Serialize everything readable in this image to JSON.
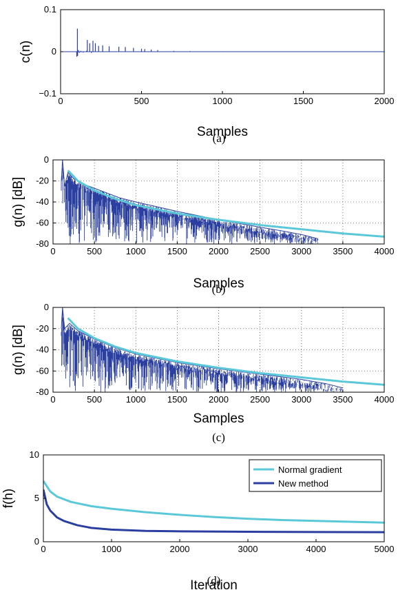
{
  "colors": {
    "light": "#5ac8d8",
    "dark": "#2a3fa0",
    "axis": "#000000",
    "grid": "#555555"
  },
  "chart_data": [
    {
      "id": "a",
      "type": "line",
      "caption": "(a)",
      "xlabel": "Samples",
      "ylabel": "c(n)",
      "xlim": [
        0,
        2000
      ],
      "ylim": [
        -0.1,
        0.1
      ],
      "xticks": [
        0,
        500,
        1000,
        1500,
        2000
      ],
      "ytick_labels": [
        "0.1",
        "0",
        "−0.1"
      ],
      "yticks": [
        0.1,
        0,
        -0.1
      ],
      "grid": false,
      "series": [
        {
          "color": "dark",
          "x": [
            0,
            100,
            100,
            104,
            105,
            110,
            115,
            125,
            140,
            160,
            165,
            170,
            180,
            190,
            200,
            201,
            215,
            220,
            235,
            240,
            260,
            280,
            300,
            330,
            360,
            400,
            450,
            500,
            520,
            560,
            600,
            700,
            800,
            1000,
            1300,
            1600,
            2000
          ],
          "y": [
            0,
            0,
            -0.012,
            0.055,
            -0.01,
            0.004,
            -0.003,
            0.002,
            -0.002,
            0.002,
            0.028,
            0.0,
            0.02,
            -0.003,
            0.026,
            0.0,
            0.02,
            0.0,
            0.014,
            0.0,
            0.015,
            0.0,
            0.013,
            0.0,
            0.012,
            0.011,
            0.009,
            0.007,
            0.006,
            0.005,
            0.004,
            0.002,
            0.0015,
            0.001,
            0.0005,
            0.0003,
            0.0
          ]
        }
      ]
    },
    {
      "id": "b",
      "type": "line",
      "caption": "(b)",
      "xlabel": "Samples",
      "ylabel": "g(n) [dB]",
      "xlim": [
        0,
        4000
      ],
      "ylim": [
        -80,
        0
      ],
      "xticks": [
        0,
        500,
        1000,
        1500,
        2000,
        2500,
        3000,
        3500,
        4000
      ],
      "ytick_labels": [
        "0",
        "-20",
        "-40",
        "-60",
        "-80"
      ],
      "yticks": [
        0,
        -20,
        -40,
        -60,
        -80
      ],
      "grid": true,
      "series": [
        {
          "color": "dark",
          "x": [
            100,
            115,
            140,
            180,
            250,
            400,
            600,
            800,
            1000,
            1500,
            2000,
            2500,
            2800,
            3000,
            3200
          ],
          "upper": [
            -20,
            0,
            -25,
            -12,
            -18,
            -24,
            -30,
            -36,
            -40,
            -49,
            -57,
            -64,
            -68,
            -71,
            -75
          ],
          "lower": [
            -80,
            -40,
            -70,
            -80,
            -80,
            -80,
            -80,
            -80,
            -80,
            -80,
            -80,
            -80,
            -80,
            -80,
            -80
          ]
        },
        {
          "color": "light",
          "x": [
            180,
            300,
            500,
            750,
            1000,
            1500,
            2000,
            2500,
            3000,
            3500,
            4000
          ],
          "y": [
            -10,
            -20,
            -29,
            -37,
            -43,
            -51,
            -57,
            -62,
            -66,
            -70,
            -73
          ]
        }
      ]
    },
    {
      "id": "c",
      "type": "line",
      "caption": "(c)",
      "xlabel": "Samples",
      "ylabel": "g(n) [dB]",
      "xlim": [
        0,
        4000
      ],
      "ylim": [
        -80,
        0
      ],
      "xticks": [
        0,
        500,
        1000,
        1500,
        2000,
        2500,
        3000,
        3500,
        4000
      ],
      "ytick_labels": [
        "0",
        "-20",
        "-40",
        "-60",
        "-80"
      ],
      "yticks": [
        0,
        -20,
        -40,
        -60,
        -80
      ],
      "grid": true,
      "series": [
        {
          "color": "dark",
          "x": [
            100,
            115,
            140,
            200,
            300,
            500,
            750,
            1000,
            1500,
            2000,
            2500,
            3000,
            3300,
            3500
          ],
          "upper": [
            -20,
            0,
            -20,
            -15,
            -22,
            -30,
            -38,
            -44,
            -52,
            -58,
            -63,
            -68,
            -72,
            -76
          ],
          "lower": [
            -80,
            -50,
            -80,
            -80,
            -80,
            -80,
            -80,
            -80,
            -80,
            -80,
            -80,
            -80,
            -80,
            -80
          ]
        },
        {
          "color": "light",
          "x": [
            180,
            300,
            500,
            750,
            1000,
            1500,
            2000,
            2500,
            3000,
            3500,
            4000
          ],
          "y": [
            -10,
            -20,
            -29,
            -37,
            -43,
            -51,
            -57,
            -62,
            -66,
            -70,
            -73
          ]
        }
      ]
    },
    {
      "id": "d",
      "type": "line",
      "caption": "(d)",
      "xlabel": "Iteration",
      "ylabel": "f(h)",
      "xlim": [
        0,
        5000
      ],
      "ylim": [
        0,
        10
      ],
      "xticks": [
        0,
        1000,
        2000,
        3000,
        4000,
        5000
      ],
      "ytick_labels": [
        "10",
        "5",
        "0"
      ],
      "yticks": [
        10,
        5,
        0
      ],
      "grid": false,
      "legend": "top-right",
      "series": [
        {
          "name": "Normal gradient",
          "color": "light",
          "x": [
            0,
            100,
            200,
            400,
            700,
            1000,
            1500,
            2000,
            2500,
            3000,
            3500,
            4000,
            4500,
            5000
          ],
          "y": [
            7.0,
            5.8,
            5.2,
            4.6,
            4.1,
            3.8,
            3.4,
            3.1,
            2.85,
            2.65,
            2.5,
            2.4,
            2.3,
            2.2
          ]
        },
        {
          "name": "New method",
          "color": "dark",
          "x": [
            0,
            50,
            100,
            200,
            300,
            500,
            700,
            1000,
            1500,
            2000,
            3000,
            4000,
            5000
          ],
          "y": [
            6.0,
            4.3,
            3.6,
            2.8,
            2.4,
            1.9,
            1.6,
            1.4,
            1.25,
            1.2,
            1.15,
            1.12,
            1.1
          ]
        }
      ]
    }
  ]
}
